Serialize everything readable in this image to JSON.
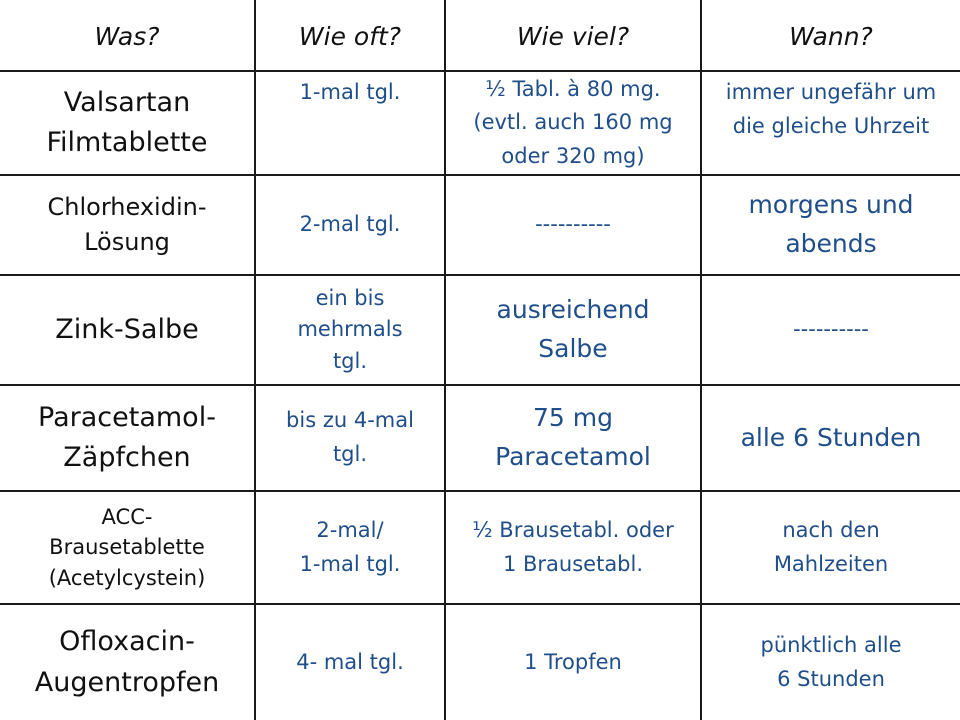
{
  "headers": {
    "was": "Was?",
    "wie_oft": "Wie oft?",
    "wie_viel": "Wie viel?",
    "wann": "Wann?"
  },
  "rows": [
    {
      "was": "Valsartan\nFilmtablette",
      "wie_oft": "1-mal tgl.",
      "wie_viel": "½ Tabl. à 80 mg.\n(evtl. auch 160 mg\noder 320 mg)",
      "wann": "immer ungefähr um\ndie gleiche Uhrzeit"
    },
    {
      "was": "Chlorhexidin-\nLösung",
      "wie_oft": "2-mal tgl.",
      "wie_viel": "----------",
      "wann": "morgens und\nabends"
    },
    {
      "was": "Zink-Salbe",
      "wie_oft": "ein bis\nmehrmals\ntgl.",
      "wie_viel": "ausreichend\nSalbe",
      "wann": "----------"
    },
    {
      "was": "Paracetamol-\nZäpfchen",
      "wie_oft": "bis zu 4-mal\ntgl.",
      "wie_viel": "75 mg\nParacetamol",
      "wann": "alle 6 Stunden"
    },
    {
      "was": "ACC-\nBrausetablette\n(Acetylcystein)",
      "wie_oft": "2-mal/\n1-mal tgl.",
      "wie_viel": "½ Brausetabl. oder\n1  Brausetabl.",
      "wann": "nach den\nMahlzeiten"
    },
    {
      "was": "Ofloxacin-\nAugentropfen",
      "wie_oft": "4- mal tgl.",
      "wie_viel": "1 Tropfen",
      "wann": "pünktlich alle\n6 Stunden"
    }
  ],
  "colors": {
    "header_text": "#111111",
    "drug_text": "#111111",
    "value_text": "#1f4e8a",
    "grid_line": "#1a1a1a"
  }
}
